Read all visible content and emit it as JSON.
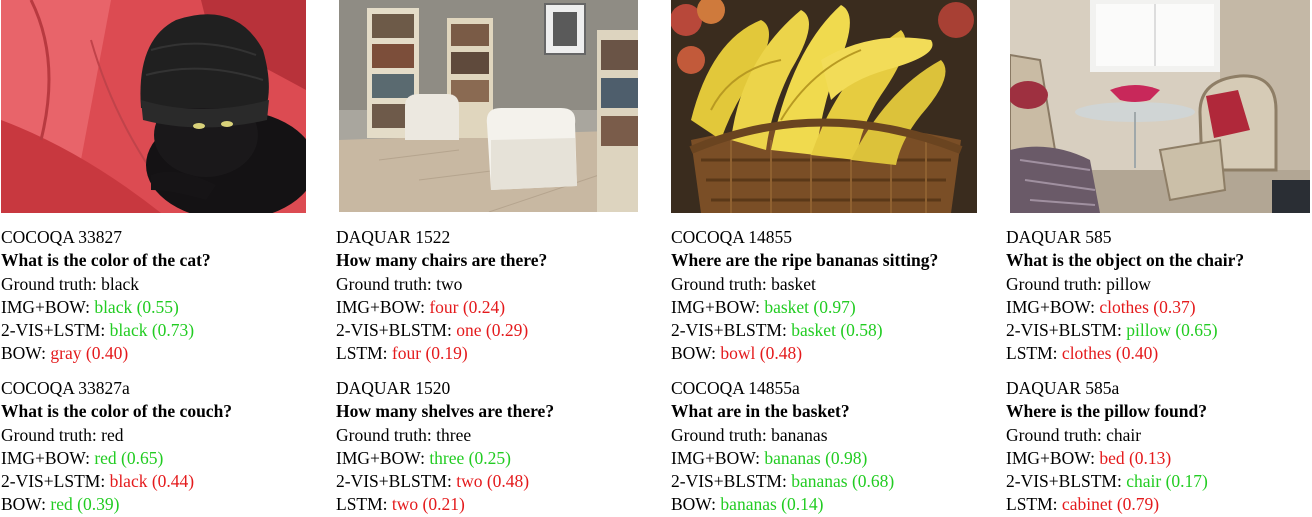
{
  "columns": [
    {
      "photo_subject": "black cat wearing a black knit beanie on a red couch",
      "examples": [
        {
          "id": "COCOQA 33827",
          "question": "What is the color of the cat?",
          "ground_truth_label": "Ground truth:",
          "ground_truth": "black",
          "predictions": [
            {
              "model": "IMG+BOW:",
              "answer": "black",
              "score": "(0.55)",
              "correct": true
            },
            {
              "model": "2-VIS+LSTM:",
              "answer": "black",
              "score": "(0.73)",
              "correct": true
            },
            {
              "model": "BOW:",
              "answer": "gray",
              "score": "(0.40)",
              "correct": false
            }
          ]
        },
        {
          "id": "COCOQA 33827a",
          "question": "What is the color of the couch?",
          "ground_truth_label": "Ground truth:",
          "ground_truth": "red",
          "predictions": [
            {
              "model": "IMG+BOW:",
              "answer": "red",
              "score": "(0.65)",
              "correct": true
            },
            {
              "model": "2-VIS+LSTM:",
              "answer": "black",
              "score": "(0.44)",
              "correct": false
            },
            {
              "model": "BOW:",
              "answer": "red",
              "score": "(0.39)",
              "correct": true
            }
          ]
        }
      ]
    },
    {
      "photo_subject": "room with bookshelves and two white armchairs",
      "examples": [
        {
          "id": "DAQUAR 1522",
          "question": "How many chairs are there?",
          "ground_truth_label": "Ground truth:",
          "ground_truth": "two",
          "predictions": [
            {
              "model": "IMG+BOW:",
              "answer": "four",
              "score": "(0.24)",
              "correct": false
            },
            {
              "model": "2-VIS+BLSTM:",
              "answer": "one",
              "score": "(0.29)",
              "correct": false
            },
            {
              "model": "LSTM:",
              "answer": "four",
              "score": "(0.19)",
              "correct": false
            }
          ]
        },
        {
          "id": "DAQUAR 1520",
          "question": "How many shelves are there?",
          "ground_truth_label": "Ground truth:",
          "ground_truth": "three",
          "predictions": [
            {
              "model": "IMG+BOW:",
              "answer": "three",
              "score": "(0.25)",
              "correct": true
            },
            {
              "model": "2-VIS+BLSTM:",
              "answer": "two",
              "score": "(0.48)",
              "correct": false
            },
            {
              "model": "LSTM:",
              "answer": "two",
              "score": "(0.21)",
              "correct": false
            }
          ]
        }
      ]
    },
    {
      "photo_subject": "basket full of ripe bananas",
      "examples": [
        {
          "id": "COCOQA 14855",
          "question": "Where are the ripe bananas sitting?",
          "ground_truth_label": "Ground truth:",
          "ground_truth": "basket",
          "predictions": [
            {
              "model": "IMG+BOW:",
              "answer": "basket",
              "score": "(0.97)",
              "correct": true
            },
            {
              "model": "2-VIS+BLSTM:",
              "answer": "basket",
              "score": "(0.58)",
              "correct": true
            },
            {
              "model": "BOW:",
              "answer": "bowl",
              "score": "(0.48)",
              "correct": false
            }
          ]
        },
        {
          "id": "COCOQA 14855a",
          "question": "What are in the basket?",
          "ground_truth_label": "Ground truth:",
          "ground_truth": "bananas",
          "predictions": [
            {
              "model": "IMG+BOW:",
              "answer": "bananas",
              "score": "(0.98)",
              "correct": true
            },
            {
              "model": "2-VIS+BLSTM:",
              "answer": "bananas",
              "score": "(0.68)",
              "correct": true
            },
            {
              "model": "BOW:",
              "answer": "bananas",
              "score": "(0.14)",
              "correct": true
            }
          ]
        }
      ]
    },
    {
      "photo_subject": "room with chairs, red pillow and glass table",
      "examples": [
        {
          "id": "DAQUAR 585",
          "question": "What is the object on the chair?",
          "ground_truth_label": "Ground truth:",
          "ground_truth": "pillow",
          "predictions": [
            {
              "model": "IMG+BOW:",
              "answer": "clothes",
              "score": "(0.37)",
              "correct": false
            },
            {
              "model": "2-VIS+BLSTM:",
              "answer": "pillow",
              "score": "(0.65)",
              "correct": true
            },
            {
              "model": "LSTM:",
              "answer": "clothes",
              "score": "(0.40)",
              "correct": false
            }
          ]
        },
        {
          "id": "DAQUAR 585a",
          "question": "Where is the pillow found?",
          "ground_truth_label": "Ground truth:",
          "ground_truth": "chair",
          "predictions": [
            {
              "model": "IMG+BOW:",
              "answer": "bed",
              "score": "(0.13)",
              "correct": false
            },
            {
              "model": "2-VIS+BLSTM:",
              "answer": "chair",
              "score": "(0.17)",
              "correct": true
            },
            {
              "model": "LSTM:",
              "answer": "cabinet",
              "score": "(0.79)",
              "correct": false
            }
          ]
        }
      ]
    }
  ]
}
